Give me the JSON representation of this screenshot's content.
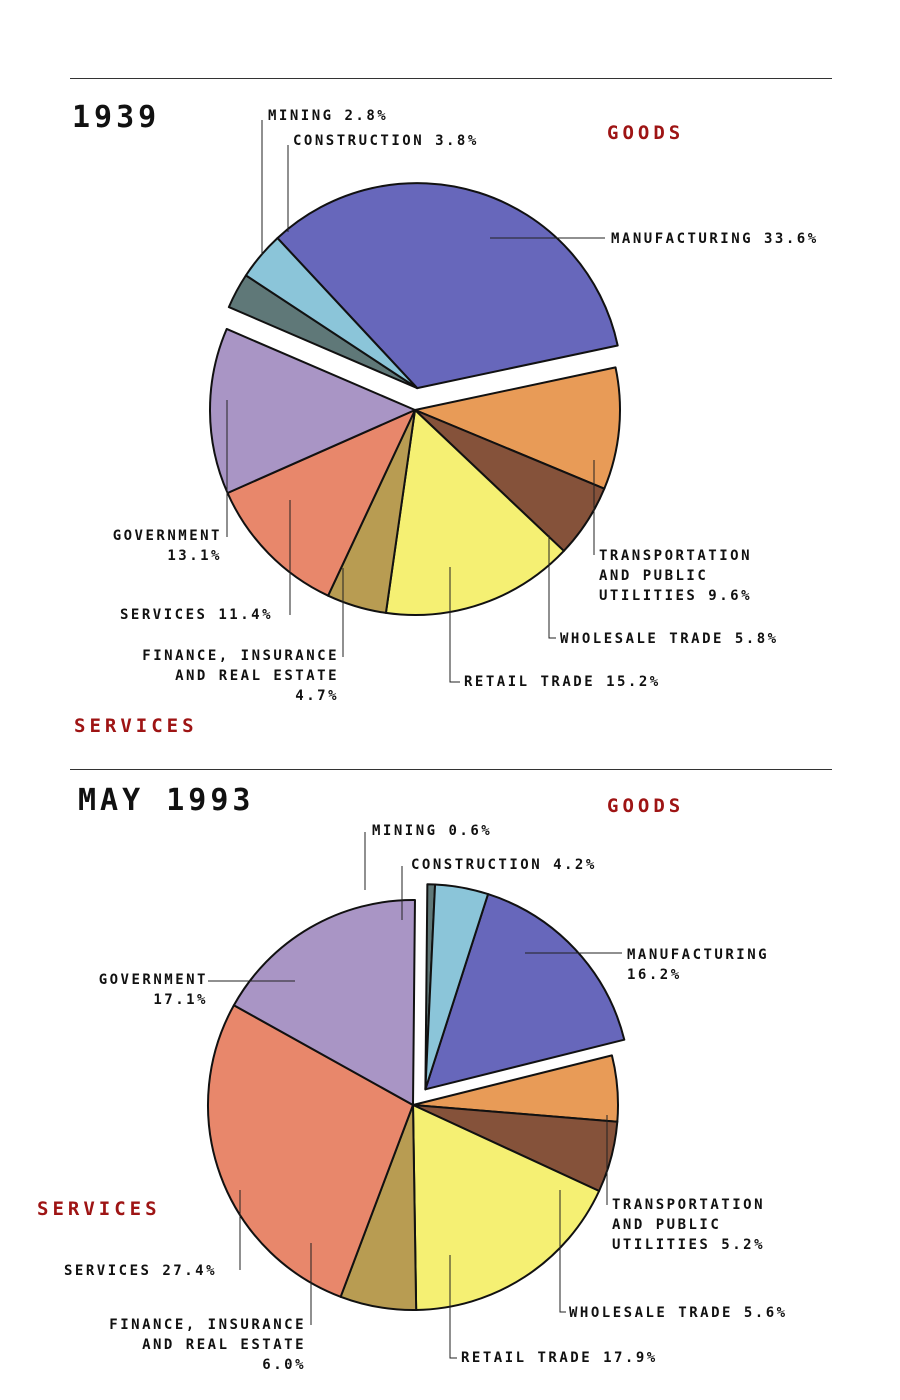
{
  "chart_data": [
    {
      "type": "pie",
      "title": "1939",
      "group_labels": {
        "goods": "GOODS",
        "services": "SERVICES"
      },
      "slices": [
        {
          "key": "manufacturing",
          "label": "MANUFACTURING 33.6%",
          "value": 33.6,
          "group": "goods",
          "color": "#6767bb"
        },
        {
          "key": "transportation",
          "label": "TRANSPORTATION\nAND PUBLIC\nUTILITIES 9.6%",
          "value": 9.6,
          "group": "services",
          "color": "#e89b57"
        },
        {
          "key": "wholesale",
          "label": "WHOLESALE TRADE 5.8%",
          "value": 5.8,
          "group": "services",
          "color": "#85523a"
        },
        {
          "key": "retail",
          "label": "RETAIL TRADE 15.2%",
          "value": 15.2,
          "group": "services",
          "color": "#f5f073"
        },
        {
          "key": "fire",
          "label": "FINANCE, INSURANCE\nAND REAL ESTATE\n4.7%",
          "value": 4.7,
          "group": "services",
          "color": "#b89c52"
        },
        {
          "key": "services",
          "label": "SERVICES 11.4%",
          "value": 11.4,
          "group": "services",
          "color": "#e8876b"
        },
        {
          "key": "government",
          "label": "GOVERNMENT\n13.1%",
          "value": 13.1,
          "group": "services",
          "color": "#a995c5"
        },
        {
          "key": "mining",
          "label": "MINING 2.8%",
          "value": 2.8,
          "group": "goods",
          "color": "#5f7878"
        },
        {
          "key": "construction",
          "label": "CONSTRUCTION 3.8%",
          "value": 3.8,
          "group": "goods",
          "color": "#8bc5d9"
        }
      ]
    },
    {
      "type": "pie",
      "title": "MAY 1993",
      "group_labels": {
        "goods": "GOODS",
        "services": "SERVICES"
      },
      "slices": [
        {
          "key": "manufacturing",
          "label": "MANUFACTURING\n16.2%",
          "value": 16.2,
          "group": "goods",
          "color": "#6767bb"
        },
        {
          "key": "transportation",
          "label": "TRANSPORTATION\nAND PUBLIC\nUTILITIES 5.2%",
          "value": 5.2,
          "group": "services",
          "color": "#e89b57"
        },
        {
          "key": "wholesale",
          "label": "WHOLESALE TRADE 5.6%",
          "value": 5.6,
          "group": "services",
          "color": "#85523a"
        },
        {
          "key": "retail",
          "label": "RETAIL TRADE 17.9%",
          "value": 17.9,
          "group": "services",
          "color": "#f5f073"
        },
        {
          "key": "fire",
          "label": "FINANCE, INSURANCE\nAND REAL ESTATE\n6.0%",
          "value": 6.0,
          "group": "services",
          "color": "#b89c52"
        },
        {
          "key": "services",
          "label": "SERVICES 27.4%",
          "value": 27.4,
          "group": "services",
          "color": "#e8876b"
        },
        {
          "key": "government",
          "label": "GOVERNMENT\n17.1%",
          "value": 17.1,
          "group": "services",
          "color": "#a995c5"
        },
        {
          "key": "mining",
          "label": "MINING 0.6%",
          "value": 0.6,
          "group": "goods",
          "color": "#5f7878"
        },
        {
          "key": "construction",
          "label": "CONSTRUCTION 4.2%",
          "value": 4.2,
          "group": "goods",
          "color": "#8bc5d9"
        }
      ]
    }
  ]
}
